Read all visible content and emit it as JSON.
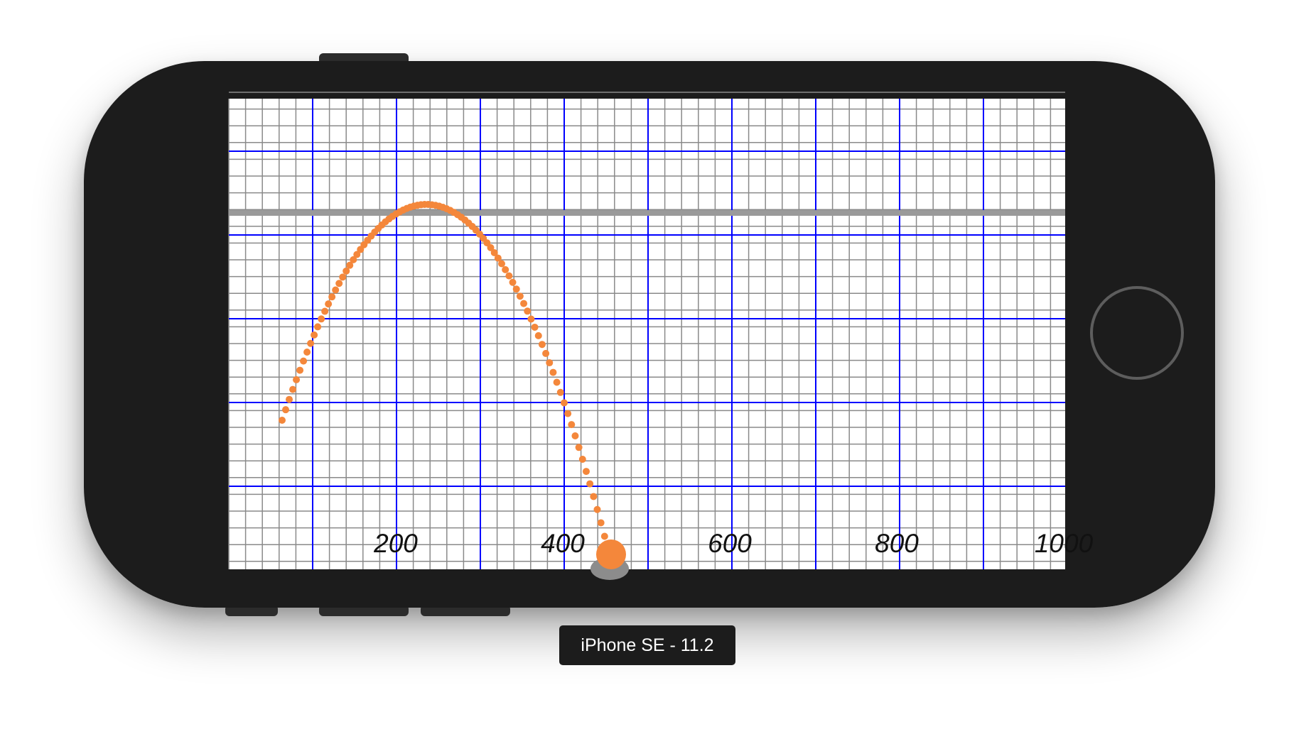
{
  "device": {
    "label": "iPhone SE - 11.2",
    "frame_color": "#1c1c1c"
  },
  "screen": {
    "axis_ticks": [
      "200",
      "400",
      "600",
      "800",
      "1000"
    ],
    "colors": {
      "minor_grid": "#8a8a8a",
      "major_grid": "#0000ff",
      "horizontal_line": "#9a9a9a",
      "trajectory": "#f4873b",
      "ground": "#8c8c8c"
    }
  },
  "trajectory": {
    "points_note": ""
  }
}
